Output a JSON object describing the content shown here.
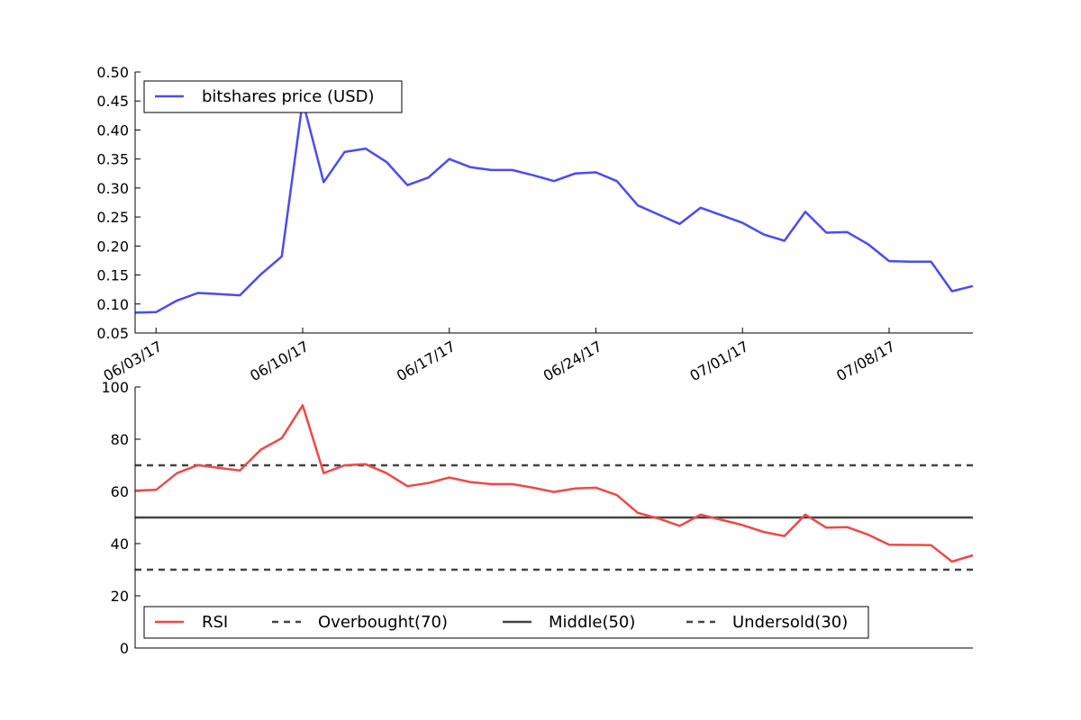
{
  "chart_data": [
    {
      "type": "line",
      "x_tick_labels": [
        "06/03/17",
        "06/10/17",
        "06/17/17",
        "06/24/17",
        "07/01/17",
        "07/08/17"
      ],
      "x_tick_days": [
        1,
        8,
        15,
        22,
        29,
        36
      ],
      "xlim": [
        0,
        40
      ],
      "ylim": [
        0.05,
        0.5
      ],
      "y_ticks": [
        0.05,
        0.1,
        0.15,
        0.2,
        0.25,
        0.3,
        0.35,
        0.4,
        0.45,
        0.5
      ],
      "y_tick_labels": [
        "0.05",
        "0.10",
        "0.15",
        "0.20",
        "0.25",
        "0.30",
        "0.35",
        "0.40",
        "0.45",
        "0.50"
      ],
      "legend_position": "top-left",
      "grid": false,
      "series": [
        {
          "name": "bitshares price (USD)",
          "color": "#4b4bf3",
          "x": [
            0,
            1,
            2,
            3,
            4,
            5,
            6,
            7,
            8,
            9,
            10,
            11,
            12,
            13,
            14,
            15,
            16,
            17,
            18,
            19,
            20,
            21,
            22,
            23,
            24,
            25,
            26,
            27,
            28,
            29,
            30,
            31,
            32,
            33,
            34,
            35,
            36,
            37,
            38,
            39,
            40
          ],
          "y": [
            0.085,
            0.086,
            0.106,
            0.119,
            0.117,
            0.115,
            0.151,
            0.182,
            0.45,
            0.31,
            0.362,
            0.368,
            0.345,
            0.305,
            0.318,
            0.35,
            0.336,
            0.331,
            0.331,
            0.322,
            0.312,
            0.325,
            0.327,
            0.312,
            0.27,
            0.254,
            0.238,
            0.266,
            0.253,
            0.24,
            0.22,
            0.209,
            0.259,
            0.223,
            0.224,
            0.203,
            0.174,
            0.173,
            0.173,
            0.122,
            0.131
          ]
        }
      ]
    },
    {
      "type": "line",
      "xlim": [
        0,
        40
      ],
      "ylim": [
        0,
        100
      ],
      "y_ticks": [
        0,
        20,
        40,
        60,
        80,
        100
      ],
      "y_tick_labels": [
        "0",
        "20",
        "40",
        "60",
        "80",
        "100"
      ],
      "legend_position": "bottom-left",
      "grid": false,
      "series": [
        {
          "name": "RSI",
          "color": "#f04848",
          "style": "solid",
          "x": [
            0,
            1,
            2,
            3,
            4,
            5,
            6,
            7,
            8,
            9,
            10,
            11,
            12,
            13,
            14,
            15,
            16,
            17,
            18,
            19,
            20,
            21,
            22,
            23,
            24,
            25,
            26,
            27,
            28,
            29,
            30,
            31,
            32,
            33,
            34,
            35,
            36,
            37,
            38,
            39,
            40
          ],
          "y": [
            60.3,
            60.6,
            67,
            70.1,
            69,
            68,
            76,
            80.4,
            93,
            67,
            70,
            70.4,
            67,
            62,
            63.2,
            65.3,
            63.6,
            62.8,
            62.8,
            61.4,
            59.8,
            61.1,
            61.4,
            58.6,
            51.8,
            49.6,
            46.8,
            51.1,
            49.1,
            47.1,
            44.5,
            42.9,
            51.1,
            46.1,
            46.3,
            43.4,
            39.6,
            39.5,
            39.4,
            33.1,
            35.5
          ]
        },
        {
          "name": "Overbought(70)",
          "color": "#444444",
          "style": "dashed",
          "x": [
            0,
            40
          ],
          "y": [
            70,
            70
          ]
        },
        {
          "name": "Middle(50)",
          "color": "#444444",
          "style": "solid",
          "x": [
            0,
            40
          ],
          "y": [
            50,
            50
          ]
        },
        {
          "name": "Undersold(30)",
          "color": "#444444",
          "style": "dashed",
          "x": [
            0,
            40
          ],
          "y": [
            30,
            30
          ]
        }
      ]
    }
  ]
}
